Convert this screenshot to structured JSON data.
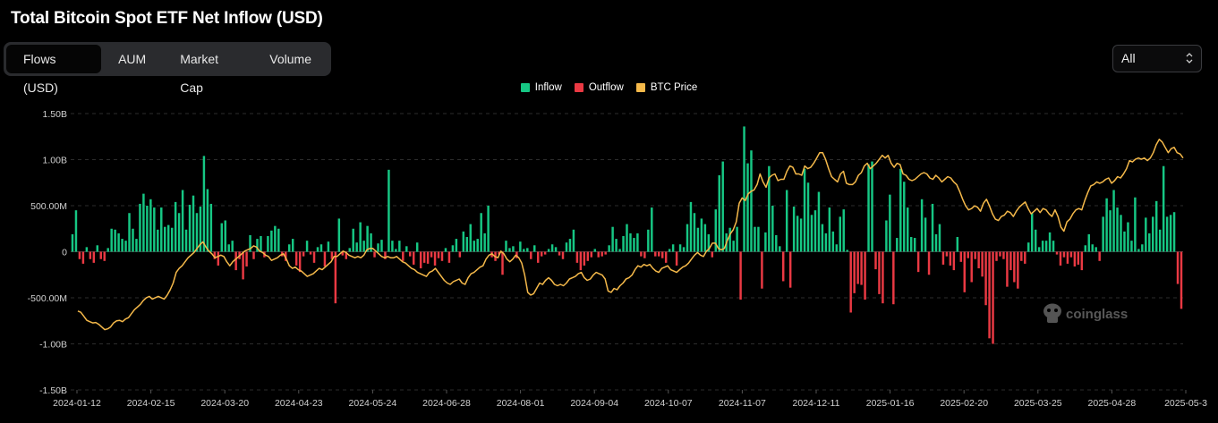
{
  "title": "Total Bitcoin Spot ETF Net Inflow (USD)",
  "tabs": [
    {
      "label": "Flows (USD)",
      "active": true
    },
    {
      "label": "AUM",
      "active": false
    },
    {
      "label": "Market Cap",
      "active": false
    },
    {
      "label": "Volume",
      "active": false
    }
  ],
  "range_select": {
    "value": "All"
  },
  "watermark": "coinglass",
  "colors": {
    "inflow": "#16c784",
    "outflow": "#ea3943",
    "btc_price": "#f5b94a",
    "grid": "#2c2c2c"
  },
  "chart_data": {
    "type": "bar",
    "legend": [
      "Inflow",
      "Outflow",
      "BTC Price"
    ],
    "legend_position": "top-center",
    "grid": true,
    "ylim": [
      -1.5,
      1.5
    ],
    "y_unit": "billion USD",
    "y_ticks": [
      "1.50B",
      "1.00B",
      "500.00M",
      "0",
      "-500.00M",
      "-1.00B",
      "-1.50B"
    ],
    "x_ticks": [
      "2024-01-12",
      "2024-02-15",
      "2024-03-20",
      "2024-04-23",
      "2024-05-24",
      "2024-06-28",
      "2024-08-01",
      "2024-09-04",
      "2024-10-07",
      "2024-11-07",
      "2024-12-11",
      "2025-01-16",
      "2025-02-20",
      "2025-03-25",
      "2025-04-28",
      "2025-05-3"
    ],
    "date_range": [
      "2024-01-11",
      "2025-05-30"
    ],
    "series": [
      {
        "name": "Inflow / Outflow",
        "values": [
          0.19,
          0.45,
          -0.08,
          -0.13,
          0.05,
          -0.08,
          -0.12,
          0.07,
          -0.08,
          -0.1,
          0.04,
          0.25,
          0.24,
          0.2,
          0.14,
          0.12,
          0.42,
          0.25,
          0.14,
          0.52,
          0.63,
          0.5,
          0.57,
          0.48,
          0.24,
          0.48,
          0.27,
          0.29,
          0.26,
          0.54,
          0.42,
          0.67,
          0.24,
          0.51,
          0.61,
          0.42,
          0.49,
          1.04,
          0.68,
          0.52,
          -0.08,
          -0.15,
          0.31,
          0.34,
          0.08,
          0.12,
          -0.2,
          -0.08,
          -0.3,
          -0.16,
          0.18,
          -0.08,
          0.14,
          0.17,
          -0.06,
          0.17,
          0.23,
          0.28,
          0.25,
          -0.05,
          -0.1,
          0.08,
          0.14,
          -0.15,
          -0.22,
          -0.05,
          0.12,
          -0.03,
          -0.12,
          0.05,
          0.08,
          -0.16,
          0.11,
          -0.08,
          -0.56,
          0.36,
          -0.04,
          -0.08,
          0.04,
          0.25,
          0.1,
          0.32,
          0.12,
          0.28,
          0.2,
          -0.06,
          0.09,
          0.13,
          -0.08,
          0.89,
          0.12,
          0.03,
          0.12,
          -0.1,
          0.06,
          -0.05,
          -0.14,
          0.1,
          -0.18,
          -0.12,
          -0.13,
          -0.06,
          -0.15,
          -0.07,
          -0.1,
          0.04,
          -0.12,
          0.07,
          0.14,
          -0.06,
          0.22,
          0.16,
          0.3,
          0.12,
          0.14,
          0.42,
          0.2,
          0.5,
          -0.06,
          -0.1,
          -0.03,
          -0.25,
          0.12,
          0.04,
          0.06,
          -0.07,
          0.11,
          0.03,
          0.04,
          -0.08,
          0.07,
          -0.12,
          -0.05,
          -0.03,
          0.03,
          0.08,
          0.05,
          -0.04,
          -0.08,
          0.1,
          0.14,
          0.24,
          -0.12,
          -0.2,
          -0.15,
          -0.1,
          -0.06,
          0.03,
          -0.06,
          -0.05,
          -0.03,
          0.07,
          0.27,
          0.14,
          0.03,
          0.17,
          0.3,
          0.2,
          0.15,
          0.2,
          -0.05,
          -0.07,
          0.24,
          0.48,
          -0.05,
          -0.05,
          -0.07,
          -0.12,
          0.03,
          0.08,
          -0.15,
          0.08,
          0.05,
          0.3,
          0.54,
          0.42,
          0.26,
          0.36,
          0.3,
          0.19,
          -0.06,
          0.46,
          0.83,
          0.98,
          0.2,
          0.26,
          0.12,
          0.27,
          -0.52,
          1.36,
          0.96,
          1.1,
          0.27,
          0.27,
          -0.4,
          0.21,
          0.93,
          0.5,
          0.18,
          0.06,
          -0.32,
          0.67,
          -0.39,
          0.49,
          0.39,
          0.36,
          0.9,
          0.75,
          0.4,
          0.45,
          0.65,
          0.3,
          0.2,
          0.48,
          0.22,
          0.08,
          0.38,
          0.46,
          0.02,
          -0.66,
          -0.45,
          -0.35,
          -0.36,
          -0.52,
          0.95,
          0.98,
          -0.19,
          -0.46,
          -0.56,
          0.34,
          0.62,
          -0.57,
          0.15,
          0.9,
          0.76,
          0.48,
          0.16,
          0.15,
          -0.22,
          0.57,
          0.37,
          -0.25,
          0.52,
          0.19,
          0.3,
          -0.14,
          -0.05,
          -0.15,
          -0.2,
          0.16,
          -0.11,
          -0.44,
          -0.07,
          -0.33,
          -0.08,
          -0.18,
          -0.27,
          -0.58,
          -0.94,
          -1.0,
          -0.1,
          -0.05,
          -0.08,
          -0.38,
          -0.2,
          -0.33,
          -0.4,
          -0.1,
          -0.13,
          0.1,
          0.42,
          0.24,
          0.05,
          0.12,
          0.12,
          0.21,
          0.12,
          -0.03,
          -0.15,
          -0.06,
          -0.13,
          -0.06,
          -0.16,
          -0.14,
          -0.2,
          0.07,
          0.19,
          0.08,
          0.05,
          -0.1,
          0.38,
          0.58,
          0.45,
          0.67,
          0.48,
          0.4,
          0.22,
          0.32,
          0.12,
          0.59,
          0.03,
          0.08,
          0.37,
          0.2,
          0.38,
          0.55,
          0.24,
          0.93,
          0.38,
          0.4,
          0.43,
          -0.35,
          -0.62
        ]
      },
      {
        "name": "BTC Price",
        "values": [
          46500,
          46000,
          44500,
          43000,
          42500,
          42000,
          42200,
          41500,
          40500,
          39500,
          39800,
          40500,
          42000,
          42800,
          43000,
          42500,
          43500,
          44000,
          45500,
          47000,
          48000,
          49000,
          50500,
          51500,
          52000,
          51000,
          51500,
          52000,
          51500,
          51000,
          52500,
          54500,
          57000,
          61000,
          62500,
          63500,
          65000,
          66500,
          67500,
          68500,
          70000,
          71500,
          72500,
          70500,
          69000,
          68000,
          66500,
          67000,
          67500,
          67000,
          65000,
          63500,
          65000,
          66000,
          67000,
          68000,
          69000,
          69500,
          70000,
          71000,
          70500,
          69000,
          68500,
          67500,
          67000,
          65500,
          66000,
          66500,
          67500,
          68000,
          66000,
          63500,
          62500,
          63000,
          62000,
          61500,
          60500,
          59500,
          60000,
          60500,
          61500,
          62500,
          62000,
          63000,
          64000,
          65000,
          67000,
          67000,
          68000,
          69000,
          68500,
          67500,
          67000,
          66500,
          67000,
          66500,
          67500,
          69500,
          70000,
          70000,
          69000,
          68000,
          67000,
          66500,
          67000,
          66500,
          66500,
          67000,
          66000,
          65000,
          64500,
          63500,
          62500,
          62000,
          61000,
          60500,
          60000,
          59500,
          61000,
          61500,
          62500,
          61000,
          59500,
          58000,
          57000,
          56500,
          57500,
          58000,
          58500,
          57000,
          56500,
          59000,
          60500,
          61000,
          62000,
          63000,
          63500,
          66000,
          67500,
          68000,
          67000,
          66500,
          69000,
          68000,
          66000,
          65000,
          66000,
          67500,
          66500,
          64500,
          60000,
          53500,
          52500,
          53000,
          55000,
          57000,
          56500,
          58000,
          59000,
          58000,
          56500,
          56000,
          56500,
          56000,
          57000,
          58500,
          59000,
          59500,
          60500,
          61000,
          59000,
          58000,
          58500,
          60000,
          61000,
          60500,
          60000,
          58500,
          54000,
          53500,
          55000,
          54500,
          56000,
          57000,
          58500,
          59000,
          60000,
          62000,
          63500,
          63000,
          64000,
          63500,
          64000,
          62500,
          61500,
          61000,
          62500,
          63000,
          63500,
          62000,
          61500,
          61000,
          62000,
          63000,
          63500,
          64500,
          66000,
          67500,
          68500,
          67500,
          67000,
          69000,
          70000,
          72000,
          72000,
          70000,
          69500,
          70000,
          73000,
          75500,
          77000,
          80000,
          87000,
          89000,
          88000,
          90500,
          91500,
          92000,
          94000,
          98000,
          95000,
          93000,
          96500,
          97500,
          98000,
          95500,
          96000,
          96000,
          99000,
          101000,
          100500,
          98000,
          98000,
          97500,
          101000,
          100000,
          100500,
          102000,
          104000,
          106000,
          106000,
          103500,
          100000,
          97000,
          96000,
          95000,
          98000,
          99000,
          94500,
          94000,
          94000,
          95000,
          97500,
          98500,
          101000,
          102000,
          100000,
          101000,
          102000,
          103500,
          105000,
          104000,
          105000,
          102000,
          100500,
          102000,
          101500,
          98000,
          97500,
          96000,
          95500,
          96000,
          97000,
          98000,
          98500,
          98000,
          96500,
          96000,
          97500,
          96500,
          95000,
          96000,
          97000,
          96500,
          95000,
          94000,
          91500,
          88500,
          86000,
          84500,
          85000,
          86000,
          85500,
          84000,
          87000,
          88500,
          86000,
          83000,
          81000,
          80500,
          82000,
          82500,
          84000,
          83500,
          82000,
          84000,
          85500,
          86500,
          87500,
          85000,
          83000,
          84000,
          85000,
          83500,
          85000,
          84500,
          83000,
          82000,
          84500,
          82000,
          78000,
          76500,
          80000,
          81000,
          83000,
          84500,
          85000,
          84500,
          88000,
          91000,
          93500,
          94000,
          95000,
          94500,
          95000,
          96000,
          96500,
          94500,
          95500,
          97000,
          96500,
          98000,
          100000,
          103000,
          102500,
          103500,
          104000,
          103500,
          104000,
          103000,
          104000,
          106000,
          109000,
          111000,
          110000,
          108000,
          106000,
          107500,
          108000,
          106000,
          105500,
          104000
        ]
      }
    ]
  }
}
